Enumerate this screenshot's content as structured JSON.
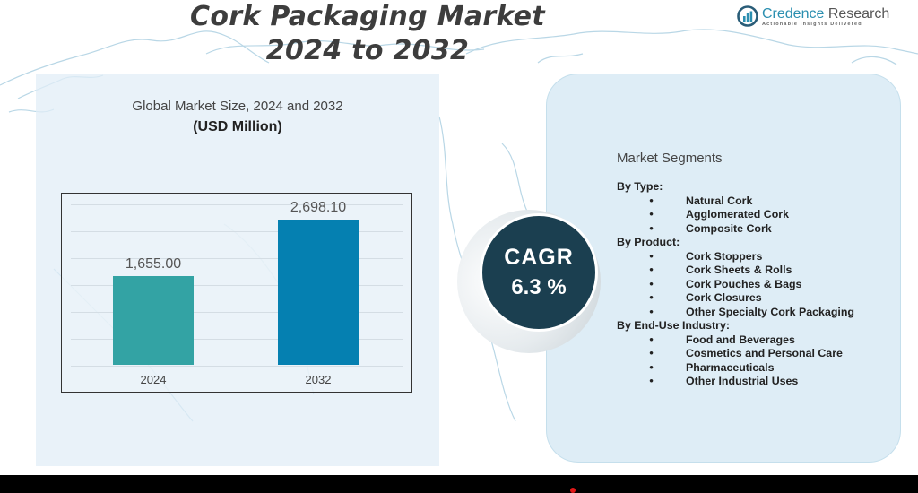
{
  "header": {
    "title_line1": "Cork Packaging Market",
    "title_line2": "2024 to 2032"
  },
  "logo": {
    "name_part1": "Credence",
    "name_part2": " Research",
    "tagline": "Actionable Insights Delivered",
    "icon": "bar-chart-circle-icon"
  },
  "chart_panel": {
    "heading": "Global Market Size,  2024 and 2032",
    "subheading": "(USD Million)"
  },
  "chart_data": {
    "type": "bar",
    "title": "Global Market Size, 2024 and 2032",
    "subtitle": "(USD Million)",
    "categories": [
      "2024",
      "2032"
    ],
    "values": [
      1655.0,
      2698.1
    ],
    "value_labels": [
      "1,655.00",
      "2,698.10"
    ],
    "colors": [
      "#33a3a4",
      "#0580b1"
    ],
    "xlabel": "",
    "ylabel": "USD Million",
    "ylim": [
      0,
      3000
    ],
    "grid": true,
    "legend": "none"
  },
  "cagr": {
    "label": "CAGR",
    "value": "6.3 %",
    "color": "#1b3f50"
  },
  "segments": {
    "title": "Market Segments",
    "groups": [
      {
        "label": "By Type:",
        "items": [
          "Natural Cork",
          "Agglomerated Cork",
          "Composite Cork"
        ]
      },
      {
        "label": "By Product:",
        "items": [
          "Cork Stoppers",
          "Cork Sheets & Rolls",
          "Cork Pouches & Bags",
          "Cork Closures",
          "Other Specialty Cork Packaging"
        ]
      },
      {
        "label": "By End-Use Industry:",
        "items": [
          "Food and Beverages",
          "Cosmetics and Personal Care",
          "Pharmaceuticals",
          "Other Industrial Uses"
        ]
      }
    ],
    "bullet": "•"
  }
}
